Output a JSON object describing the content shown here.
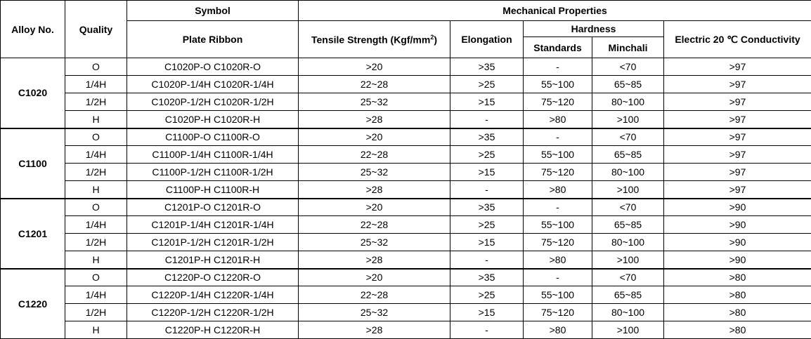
{
  "headers": {
    "alloy": "Alloy No.",
    "quality": "Quality",
    "symbol": "Symbol",
    "plate_ribbon": "Plate Ribbon",
    "mechanical": "Mechanical Properties",
    "tensile": "Tensile Strength (Kgf/mm",
    "tensile_sup": "2",
    "tensile_end": ")",
    "elongation": "Elongation",
    "hardness": "Hardness",
    "standards": "Standards",
    "minchali": "Minchali",
    "conductivity": "Electric 20 ℃ Conductivity"
  },
  "groups": [
    {
      "alloy": "C1020",
      "rows": [
        [
          "O",
          "C1020P-O C1020R-O",
          ">20",
          ">35",
          "-",
          "<70",
          ">97"
        ],
        [
          "1/4H",
          "C1020P-1/4H C1020R-1/4H",
          "22~28",
          ">25",
          "55~100",
          "65~85",
          ">97"
        ],
        [
          "1/2H",
          "C1020P-1/2H C1020R-1/2H",
          "25~32",
          ">15",
          "75~120",
          "80~100",
          ">97"
        ],
        [
          "H",
          "C1020P-H C1020R-H",
          ">28",
          "-",
          ">80",
          ">100",
          ">97"
        ]
      ]
    },
    {
      "alloy": "C1100",
      "rows": [
        [
          "O",
          "C1100P-O C1100R-O",
          ">20",
          ">35",
          "-",
          "<70",
          ">97"
        ],
        [
          "1/4H",
          "C1100P-1/4H C1100R-1/4H",
          "22~28",
          ">25",
          "55~100",
          "65~85",
          ">97"
        ],
        [
          "1/2H",
          "C1100P-1/2H C1100R-1/2H",
          "25~32",
          ">15",
          "75~120",
          "80~100",
          ">97"
        ],
        [
          "H",
          "C1100P-H C1100R-H",
          ">28",
          "-",
          ">80",
          ">100",
          ">97"
        ]
      ]
    },
    {
      "alloy": "C1201",
      "rows": [
        [
          "O",
          "C1201P-O C1201R-O",
          ">20",
          ">35",
          "-",
          "<70",
          ">90"
        ],
        [
          "1/4H",
          "C1201P-1/4H C1201R-1/4H",
          "22~28",
          ">25",
          "55~100",
          "65~85",
          ">90"
        ],
        [
          "1/2H",
          "C1201P-1/2H C1201R-1/2H",
          "25~32",
          ">15",
          "75~120",
          "80~100",
          ">90"
        ],
        [
          "H",
          "C1201P-H C1201R-H",
          ">28",
          "-",
          ">80",
          ">100",
          ">90"
        ]
      ]
    },
    {
      "alloy": "C1220",
      "rows": [
        [
          "O",
          "C1220P-O C1220R-O",
          ">20",
          ">35",
          "-",
          "<70",
          ">80"
        ],
        [
          "1/4H",
          "C1220P-1/4H C1220R-1/4H",
          "22~28",
          ">25",
          "55~100",
          "65~85",
          ">80"
        ],
        [
          "1/2H",
          "C1220P-1/2H C1220R-1/2H",
          "25~32",
          ">15",
          "75~120",
          "80~100",
          ">80"
        ],
        [
          "H",
          "C1220P-H C1220R-H",
          ">28",
          "-",
          ">80",
          ">100",
          ">80"
        ]
      ]
    }
  ]
}
